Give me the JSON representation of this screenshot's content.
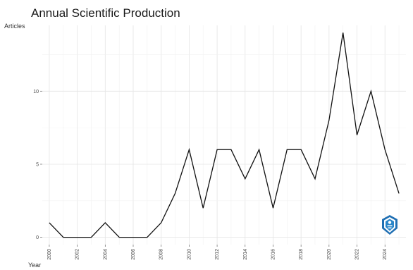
{
  "chart_data": {
    "type": "line",
    "title": "Annual Scientific Production",
    "xlabel": "Year",
    "ylabel": "Articles",
    "x": [
      2000,
      2001,
      2002,
      2003,
      2004,
      2005,
      2006,
      2007,
      2008,
      2009,
      2010,
      2011,
      2012,
      2013,
      2014,
      2015,
      2016,
      2017,
      2018,
      2019,
      2020,
      2021,
      2022,
      2023,
      2024,
      2025
    ],
    "values": [
      1,
      0,
      0,
      0,
      1,
      0,
      0,
      0,
      1,
      3,
      6,
      2,
      6,
      6,
      4,
      6,
      2,
      6,
      6,
      4,
      8,
      14,
      7,
      10,
      6,
      3
    ],
    "x_ticks": [
      "2000",
      "2002",
      "2004",
      "2006",
      "2008",
      "2010",
      "2012",
      "2014",
      "2016",
      "2018",
      "2020",
      "2022",
      "2024"
    ],
    "y_ticks": [
      "0",
      "5",
      "10"
    ],
    "xlim": [
      1999.5,
      2025.5
    ],
    "ylim": [
      -0.5,
      14.5
    ],
    "grid": true,
    "line_color": "#111111"
  },
  "logo": {
    "icon": "shield-logo-icon",
    "color": "#1f6fb3"
  }
}
